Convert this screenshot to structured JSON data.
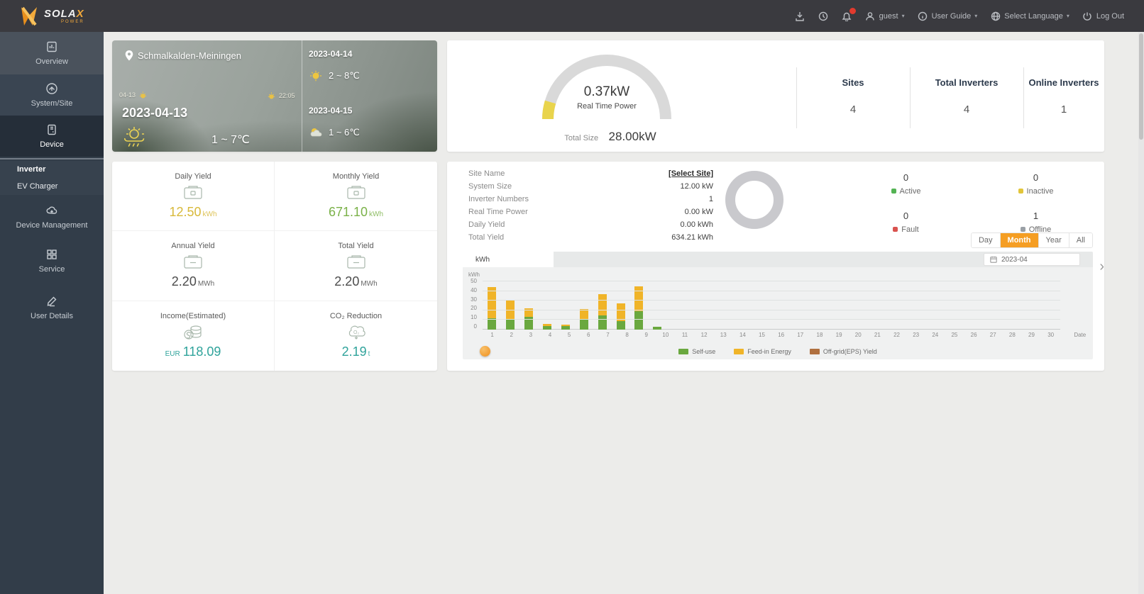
{
  "navbar": {
    "logo": {
      "text_main": "SOLA",
      "text_x": "X",
      "text_sub": "POWER"
    },
    "user_name": "guest",
    "user_guide": "User Guide",
    "select_language": "Select Language",
    "log_out": "Log Out"
  },
  "sidebar": {
    "items": [
      {
        "label": "Overview"
      },
      {
        "label": "System/Site"
      },
      {
        "label": "Device"
      },
      {
        "label": "Device Management"
      },
      {
        "label": "Service"
      },
      {
        "label": "User Details"
      }
    ],
    "submenu": [
      {
        "label": "Inverter"
      },
      {
        "label": "EV Charger"
      }
    ]
  },
  "weather": {
    "location": "Schmalkalden-Meiningen",
    "today_date": "2023-04-13",
    "today_temp": "1 ~ 7℃",
    "small_left": "04-13",
    "small_right": "22:05",
    "forecast": [
      {
        "date": "2023-04-14",
        "temp": "2 ~ 8℃"
      },
      {
        "date": "2023-04-15",
        "temp": "1 ~ 6℃"
      }
    ]
  },
  "power_summary": {
    "gauge_value": "0.37kW",
    "gauge_label": "Real Time Power",
    "total_size_label": "Total Size",
    "total_size_value": "28.00kW",
    "gauge_track_color": "#d9d9d9",
    "gauge_fill_color": "#e9d44c",
    "stats": [
      {
        "label": "Sites",
        "value": "4"
      },
      {
        "label": "Total Inverters",
        "value": "4"
      },
      {
        "label": "Online Inverters",
        "value": "1"
      }
    ]
  },
  "yield_summary": {
    "cells": [
      {
        "label": "Daily Yield",
        "prefix": "",
        "value": "12.50",
        "unit": "kWh"
      },
      {
        "label": "Monthly Yield",
        "prefix": "",
        "value": "671.10",
        "unit": "kWh"
      },
      {
        "label": "Annual Yield",
        "prefix": "",
        "value": "2.20",
        "unit": "MWh"
      },
      {
        "label": "Total Yield",
        "prefix": "",
        "value": "2.20",
        "unit": "MWh"
      },
      {
        "label": "Income(Estimated)",
        "prefix": "EUR",
        "value": "118.09",
        "unit": ""
      },
      {
        "label": "CO₂ Reduction",
        "prefix": "",
        "value": "2.19",
        "unit": "t"
      }
    ]
  },
  "site_panel": {
    "rows": [
      {
        "label": "Site Name",
        "value": "[Select Site]"
      },
      {
        "label": "System Size",
        "value": "12.00 kW"
      },
      {
        "label": "Inverter Numbers",
        "value": "1"
      },
      {
        "label": "Real Time Power",
        "value": "0.00 kW"
      },
      {
        "label": "Daily Yield",
        "value": "0.00 kWh"
      },
      {
        "label": "Total Yield",
        "value": "634.21 kWh"
      }
    ],
    "donut_color": "#c9c9cd",
    "statuses": [
      {
        "value": "0",
        "label": "Active",
        "color": "#54b354"
      },
      {
        "value": "0",
        "label": "Inactive",
        "color": "#e2c53a"
      },
      {
        "value": "0",
        "label": "Fault",
        "color": "#d9534f"
      },
      {
        "value": "1",
        "label": "Offline",
        "color": "#9aa0a6"
      }
    ],
    "range_buttons": [
      {
        "label": "Day",
        "selected": false
      },
      {
        "label": "Month",
        "selected": true
      },
      {
        "label": "Year",
        "selected": false
      },
      {
        "label": "All",
        "selected": false
      }
    ],
    "accent_color": "#f59e23",
    "unit_tab": "kWh",
    "date_value": "2023-04"
  },
  "chart_data": {
    "type": "bar",
    "stacked": true,
    "title": "",
    "unit": "kWh",
    "xlabel": "Date",
    "ylim": [
      0,
      50
    ],
    "yticks": [
      0,
      10,
      20,
      30,
      40,
      50
    ],
    "grid": true,
    "legend_position": "bottom",
    "categories": [
      1,
      2,
      3,
      4,
      5,
      6,
      7,
      8,
      9,
      10,
      11,
      12,
      13,
      14,
      15,
      16,
      17,
      18,
      19,
      20,
      21,
      22,
      23,
      24,
      25,
      26,
      27,
      28,
      29,
      30
    ],
    "series": [
      {
        "name": "Self-use",
        "color": "#6aa83f",
        "values": [
          12,
          11,
          13,
          4,
          4,
          10,
          15,
          9,
          19,
          3,
          0,
          0,
          0,
          0,
          0,
          0,
          0,
          0,
          0,
          0,
          0,
          0,
          0,
          0,
          0,
          0,
          0,
          0,
          0,
          0
        ]
      },
      {
        "name": "Feed-in Energy",
        "color": "#f0b428",
        "values": [
          32,
          19,
          9,
          2,
          1,
          11,
          22,
          18,
          26,
          0,
          0,
          0,
          0,
          0,
          0,
          0,
          0,
          0,
          0,
          0,
          0,
          0,
          0,
          0,
          0,
          0,
          0,
          0,
          0,
          0
        ]
      },
      {
        "name": "Off-grid(EPS) Yield",
        "color": "#b0703f",
        "values": [
          0,
          0,
          0,
          0,
          0,
          0,
          0,
          0,
          0,
          0,
          0,
          0,
          0,
          0,
          0,
          0,
          0,
          0,
          0,
          0,
          0,
          0,
          0,
          0,
          0,
          0,
          0,
          0,
          0,
          0
        ]
      }
    ]
  }
}
